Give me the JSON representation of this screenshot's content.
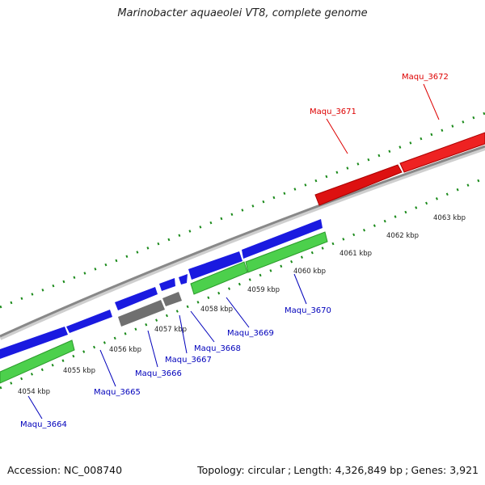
{
  "title": "Marinobacter aquaeolei VT8, complete genome",
  "footer": {
    "accession": "Accession: NC_008740",
    "topology": "Topology: circular",
    "length": "Length: 4,326,849 bp",
    "genes": "Genes: 3,921"
  },
  "colors": {
    "backbone": "#888888",
    "tick": "#1a8a1a",
    "forward_gene": "#e01010",
    "reverse_gene": "#1a1ae0",
    "rna_gene": "#4cd04c",
    "other_gene": "#707070",
    "label_red": "#dd0000",
    "label_blue": "#0000bb"
  },
  "scale_labels": [
    "4054 kbp",
    "4055 kbp",
    "4056 kbp",
    "4057 kbp",
    "4058 kbp",
    "4059 kbp",
    "4060 kbp",
    "4061 kbp",
    "4062 kbp",
    "4063 kbp"
  ],
  "gene_labels": {
    "top": [
      "Maqu_3671",
      "Maqu_3672"
    ],
    "bottom": [
      "Maqu_3664",
      "Maqu_3665",
      "Maqu_3666",
      "Maqu_3667",
      "Maqu_3668",
      "Maqu_3669",
      "Maqu_3670"
    ]
  }
}
